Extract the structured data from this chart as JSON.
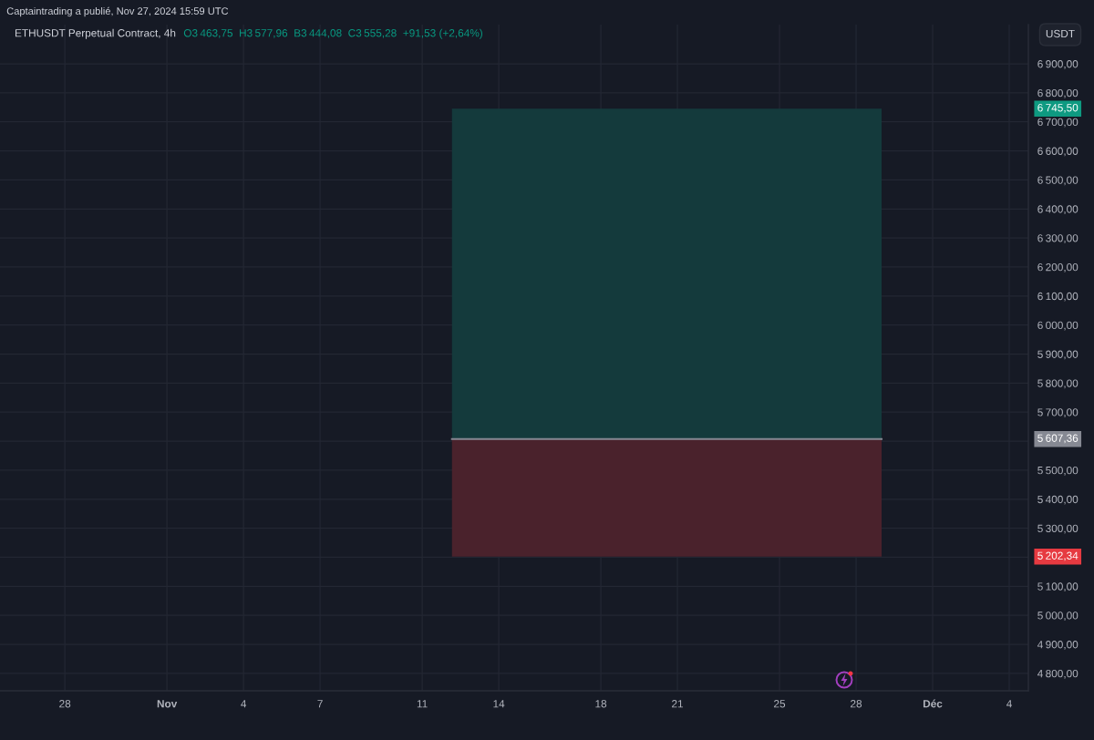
{
  "chart_data": {
    "type": "line",
    "title": "ETHUSDT Perpetual Contract, 4h",
    "subtitle": "O3 463,75  H3 577,96  B3 444,08  C3 555,28  +91,53 (+2,64%)",
    "ylabel": "USDT",
    "annotations": [
      "Captaintrading a publié, Nov 27, 2024 15:59 UTC"
    ],
    "x": [
      "2024-11-12T04:00",
      "2024-11-29T00:00"
    ],
    "series": [
      {
        "color": "#143a3c",
        "values": [
          null,
          null
        ],
        "lower": [
          5607.36,
          5607.36
        ],
        "upper": [
          6745.5,
          6745.5
        ]
      },
      {
        "color": "#4a222c",
        "values": [
          null,
          null
        ],
        "lower": [
          5202.34,
          5202.34
        ],
        "upper": [
          5607.36,
          5607.36
        ]
      },
      {
        "color": "#868993",
        "values": [
          5607.36,
          5607.36
        ]
      }
    ],
    "xlim": [
      "2024-10-25T11:00",
      "2024-12-04T18:00"
    ],
    "ylim": [
      4740,
      7035
    ],
    "xticks": [
      {
        "value": "2024-10-28",
        "label": "28"
      },
      {
        "value": "2024-11-01",
        "label": "Nov"
      },
      {
        "value": "2024-11-04",
        "label": "4"
      },
      {
        "value": "2024-11-07",
        "label": "7"
      },
      {
        "value": "2024-11-11",
        "label": "11"
      },
      {
        "value": "2024-11-14",
        "label": "14"
      },
      {
        "value": "2024-11-18",
        "label": "18"
      },
      {
        "value": "2024-11-21",
        "label": "21"
      },
      {
        "value": "2024-11-25",
        "label": "25"
      },
      {
        "value": "2024-11-28",
        "label": "28"
      },
      {
        "value": "2024-12-01",
        "label": "Déc"
      },
      {
        "value": "2024-12-04",
        "label": "4"
      }
    ],
    "yticks": [
      {
        "value": 4800,
        "label": "4 800,00"
      },
      {
        "value": 4900,
        "label": "4 900,00"
      },
      {
        "value": 5000,
        "label": "5 000,00"
      },
      {
        "value": 5100,
        "label": "5 100,00"
      },
      {
        "value": 5200,
        "label": null
      },
      {
        "value": 5202.34,
        "label": "5 202,34"
      },
      {
        "value": 5300,
        "label": "5 300,00"
      },
      {
        "value": 5400,
        "label": "5 400,00"
      },
      {
        "value": 5500,
        "label": "5 500,00"
      },
      {
        "value": 5600,
        "label": null
      },
      {
        "value": 5607.36,
        "label": "5 607,36"
      },
      {
        "value": 5700,
        "label": "5 700,00"
      },
      {
        "value": 5800,
        "label": "5 800,00"
      },
      {
        "value": 5900,
        "label": "5 900,00"
      },
      {
        "value": 6000,
        "label": "6 000,00"
      },
      {
        "value": 6100,
        "label": "6 100,00"
      },
      {
        "value": 6200,
        "label": "6 200,00"
      },
      {
        "value": 6300,
        "label": "6 300,00"
      },
      {
        "value": 6400,
        "label": "6 400,00"
      },
      {
        "value": 6500,
        "label": "6 500,00"
      },
      {
        "value": 6600,
        "label": "6 600,00"
      },
      {
        "value": 6700,
        "label": "6 700,00"
      },
      {
        "value": 6745.5,
        "label": "6 745,50"
      },
      {
        "value": 6800,
        "label": "6 800,00"
      },
      {
        "value": 6900,
        "label": "6 900,00"
      }
    ],
    "grid": true
  }
}
